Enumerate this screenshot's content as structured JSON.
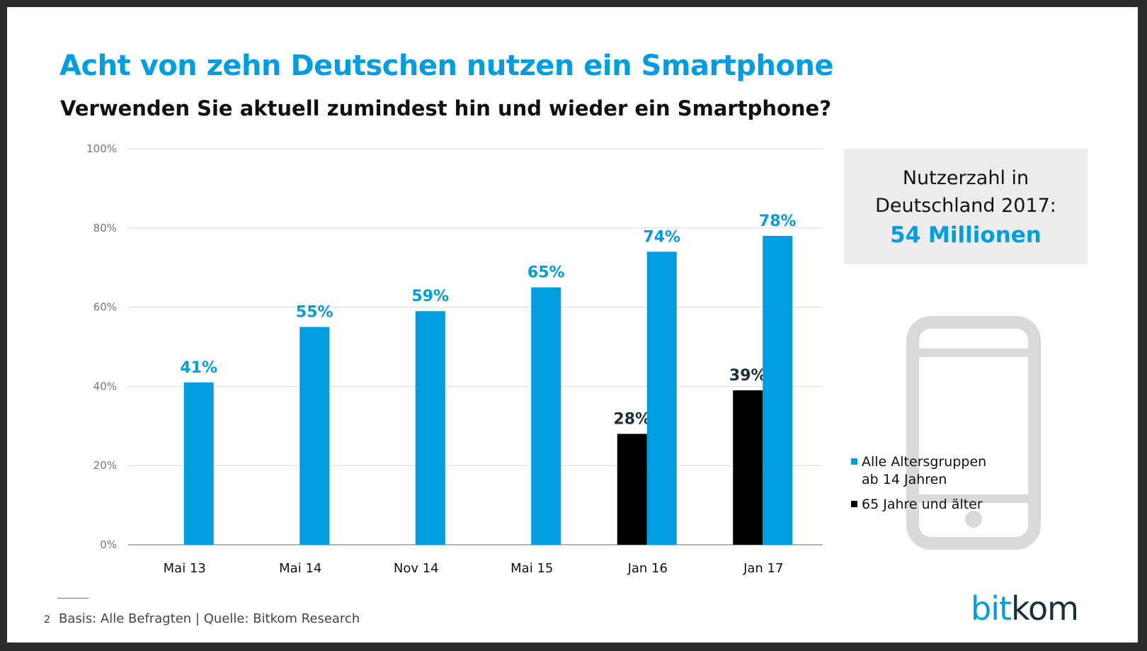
{
  "title": "Acht von zehn Deutschen nutzen ein Smartphone",
  "subtitle": "Verwenden Sie aktuell zumindest hin und wieder ein Smartphone?",
  "colors": {
    "accent": "#009ee0",
    "senior": "#000000",
    "label_dark": "#1a2f3c",
    "grid": "#d9d9d9"
  },
  "chart_data": {
    "type": "bar",
    "categories": [
      "Mai 13",
      "Mai 14",
      "Nov 14",
      "Mai 15",
      "Jan 16",
      "Jan 17"
    ],
    "series": [
      {
        "name": "65 Jahre und älter",
        "values": [
          null,
          null,
          null,
          null,
          28,
          39
        ]
      },
      {
        "name": "Alle Altersgruppen ab 14 Jahren",
        "values": [
          41,
          55,
          59,
          65,
          74,
          78
        ]
      }
    ],
    "ylim": [
      0,
      100
    ],
    "yticks": [
      0,
      20,
      40,
      60,
      80,
      100
    ],
    "ytick_labels": [
      "0%",
      "20%",
      "40%",
      "60%",
      "80%",
      "100%"
    ],
    "grid": true,
    "value_suffix": "%",
    "legend_position": "right"
  },
  "info_box": {
    "line1": "Nutzerzahl in",
    "line2": "Deutschland 2017:",
    "value": "54 Millionen"
  },
  "phone_icon": "smartphone-icon",
  "legend": [
    {
      "lines": [
        "Alle Altersgruppen",
        "ab 14 Jahren"
      ],
      "color": "#009ee0"
    },
    {
      "lines": [
        "65 Jahre und älter"
      ],
      "color": "#000000"
    }
  ],
  "footer": {
    "page_number": "2",
    "source": "Basis: Alle Befragten | Quelle: Bitkom Research"
  },
  "logo": {
    "part1": "bit",
    "part2": "kom"
  }
}
